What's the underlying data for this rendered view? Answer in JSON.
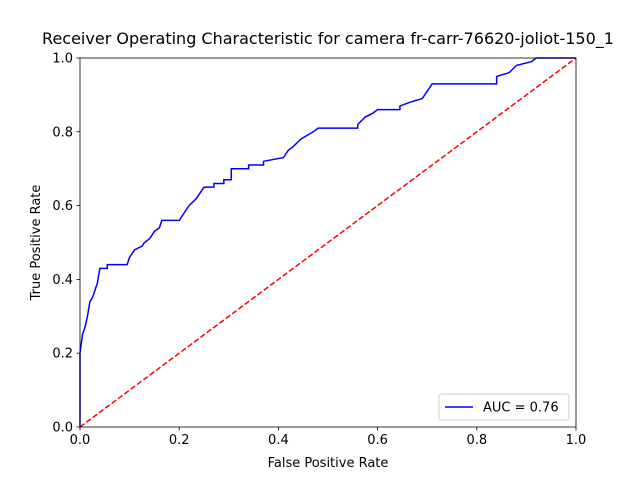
{
  "chart_data": {
    "type": "line",
    "title": "Receiver Operating Characteristic for camera fr-carr-76620-joliot-150_1",
    "x_label": "False Positive Rate",
    "y_label": "True Positive Rate",
    "xlim": [
      0,
      1
    ],
    "ylim": [
      0,
      1
    ],
    "xticks": [
      {
        "value": 0,
        "label": "0.0"
      },
      0.2,
      0.4,
      0.6,
      0.8,
      {
        "value": 1,
        "label": "1.0"
      }
    ],
    "yticks": [
      {
        "value": 0,
        "label": "0.0"
      },
      0.2,
      0.4,
      0.6,
      0.8,
      {
        "value": 1,
        "label": "1.0"
      }
    ],
    "legend": "lower right",
    "series": [
      {
        "name": "AUC = 0.76",
        "color": "blue",
        "linestyle": "solid",
        "x": [
          0,
          0,
          0.005,
          0.01,
          0.015,
          0.02,
          0.025,
          0.03,
          0.035,
          0.04,
          0.055,
          0.055,
          0.095,
          0.1,
          0.11,
          0.125,
          0.13,
          0.14,
          0.15,
          0.16,
          0.165,
          0.2,
          0.21,
          0.22,
          0.235,
          0.245,
          0.25,
          0.27,
          0.27,
          0.29,
          0.29,
          0.305,
          0.305,
          0.34,
          0.34,
          0.37,
          0.37,
          0.41,
          0.42,
          0.43,
          0.445,
          0.47,
          0.48,
          0.56,
          0.56,
          0.575,
          0.59,
          0.6,
          0.645,
          0.645,
          0.665,
          0.69,
          0.7,
          0.71,
          0.84,
          0.84,
          0.865,
          0.88,
          0.91,
          0.92,
          1.0
        ],
        "values": [
          0,
          0.2,
          0.25,
          0.27,
          0.3,
          0.34,
          0.35,
          0.37,
          0.39,
          0.43,
          0.43,
          0.44,
          0.44,
          0.46,
          0.48,
          0.49,
          0.5,
          0.51,
          0.53,
          0.54,
          0.56,
          0.56,
          0.58,
          0.6,
          0.62,
          0.64,
          0.65,
          0.65,
          0.66,
          0.66,
          0.67,
          0.67,
          0.7,
          0.7,
          0.71,
          0.71,
          0.72,
          0.73,
          0.75,
          0.76,
          0.78,
          0.8,
          0.81,
          0.81,
          0.82,
          0.84,
          0.85,
          0.86,
          0.86,
          0.87,
          0.88,
          0.89,
          0.91,
          0.93,
          0.93,
          0.95,
          0.96,
          0.98,
          0.99,
          1.0,
          1.0
        ]
      },
      {
        "color": "red",
        "linestyle": "dashed",
        "x": [
          0,
          1
        ],
        "values": [
          0,
          1
        ]
      }
    ]
  }
}
